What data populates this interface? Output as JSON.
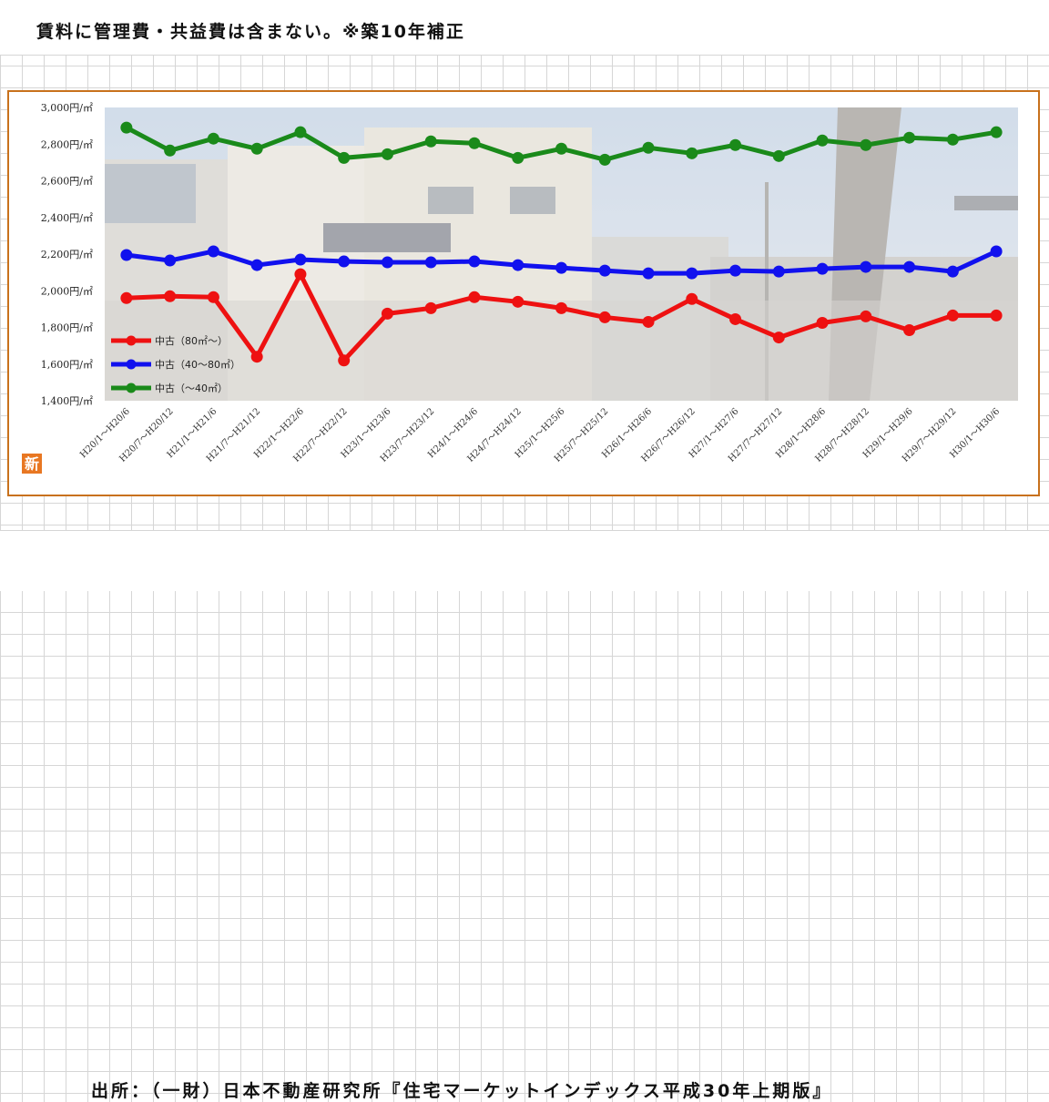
{
  "header": {
    "note": "賃料に管理費・共益費は含まない。※築10年補正"
  },
  "footer": {
    "source": "出所：（一財）日本不動産研究所『住宅マーケットインデックス平成30年上期版』"
  },
  "logo": {
    "char": "新"
  },
  "chart_data": {
    "type": "line",
    "ylim": [
      1400,
      3000
    ],
    "y_ticks": [
      1400,
      1600,
      1800,
      2000,
      2200,
      2400,
      2600,
      2800,
      3000
    ],
    "y_tick_labels": [
      "1,400円/㎡",
      "1,600円/㎡",
      "1,800円/㎡",
      "2,000円/㎡",
      "2,200円/㎡",
      "2,400円/㎡",
      "2,600円/㎡",
      "2,800円/㎡",
      "3,000円/㎡"
    ],
    "categories": [
      "H20/1～H20/6",
      "H20/7～H20/12",
      "H21/1～H21/6",
      "H21/7～H21/12",
      "H22/1～H22/6",
      "H22/7～H22/12",
      "H23/1～H23/6",
      "H23/7～H23/12",
      "H24/1～H24/6",
      "H24/7～H24/12",
      "H25/1～H25/6",
      "H25/7～H25/12",
      "H26/1～H26/6",
      "H26/7～H26/12",
      "H27/1～H27/6",
      "H27/7～H27/12",
      "H28/1～H28/6",
      "H28/7～H28/12",
      "H29/1～H29/6",
      "H29/7～H29/12",
      "H30/1～H30/6"
    ],
    "legend_position": "bottom-left",
    "grid": false,
    "series": [
      {
        "name": "中古（80㎡～）",
        "color": "#ee1111",
        "values": [
          1960,
          1970,
          1965,
          1640,
          2090,
          1620,
          1875,
          1905,
          1965,
          1940,
          1905,
          1855,
          1830,
          1955,
          1845,
          1745,
          1825,
          1860,
          1785,
          1865,
          1865
        ]
      },
      {
        "name": "中古（40～80㎡）",
        "color": "#1111ee",
        "values": [
          2195,
          2165,
          2215,
          2140,
          2170,
          2160,
          2155,
          2155,
          2160,
          2140,
          2125,
          2110,
          2095,
          2095,
          2110,
          2105,
          2120,
          2130,
          2130,
          2105,
          2215
        ]
      },
      {
        "name": "中古（～40㎡）",
        "color": "#1a8a1a",
        "values": [
          2890,
          2765,
          2830,
          2775,
          2865,
          2725,
          2745,
          2815,
          2805,
          2725,
          2775,
          2715,
          2780,
          2750,
          2795,
          2735,
          2820,
          2795,
          2835,
          2825,
          2865
        ]
      }
    ]
  }
}
